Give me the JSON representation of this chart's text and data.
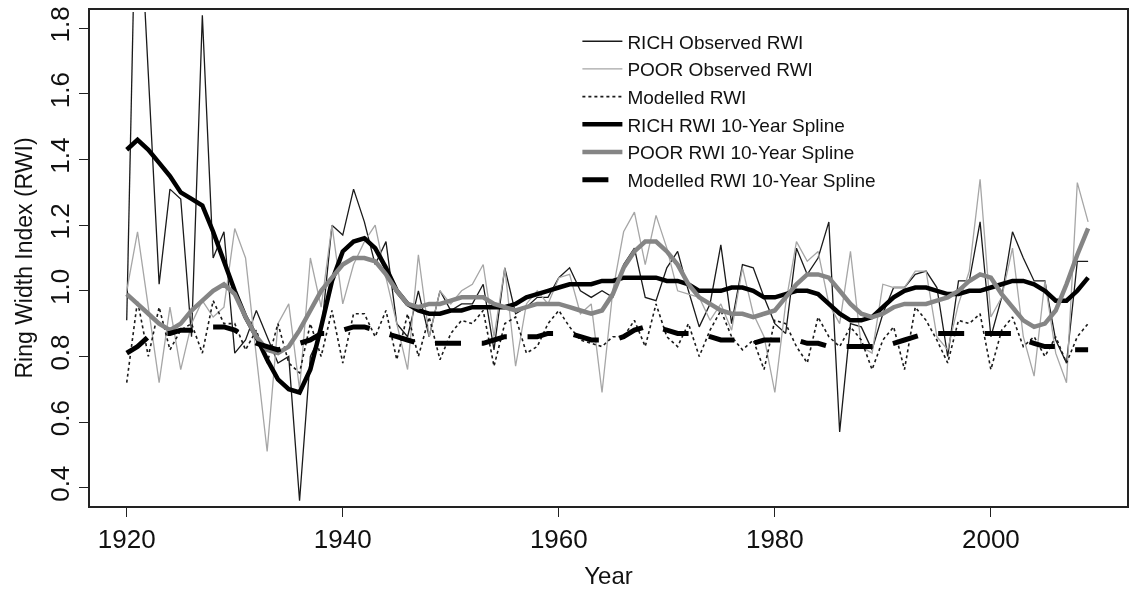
{
  "chart_data": {
    "type": "line",
    "xlabel": "Year",
    "ylabel": "Ring Width Index (RWI)",
    "x": [
      1920,
      1921,
      1922,
      1923,
      1924,
      1925,
      1926,
      1927,
      1928,
      1929,
      1930,
      1931,
      1932,
      1933,
      1934,
      1935,
      1936,
      1937,
      1938,
      1939,
      1940,
      1941,
      1942,
      1943,
      1944,
      1945,
      1946,
      1947,
      1948,
      1949,
      1950,
      1951,
      1952,
      1953,
      1954,
      1955,
      1956,
      1957,
      1958,
      1959,
      1960,
      1961,
      1962,
      1963,
      1964,
      1965,
      1966,
      1967,
      1968,
      1969,
      1970,
      1971,
      1972,
      1973,
      1974,
      1975,
      1976,
      1977,
      1978,
      1979,
      1980,
      1981,
      1982,
      1983,
      1984,
      1985,
      1986,
      1987,
      1988,
      1989,
      1990,
      1991,
      1992,
      1993,
      1994,
      1995,
      1996,
      1997,
      1998,
      1999,
      2000,
      2001,
      2002,
      2003,
      2004,
      2005,
      2006,
      2007,
      2008,
      2009
    ],
    "xlim": [
      1916.6,
      2012.6
    ],
    "xticks": [
      1920,
      1940,
      1960,
      1980,
      2000
    ],
    "ylim": [
      0.344,
      1.856
    ],
    "yticks": [
      0.4,
      0.6,
      0.8,
      {
        "value": 1,
        "label": "1.0"
      },
      1.2,
      1.4,
      1.6,
      1.8
    ],
    "grid": false,
    "legend": "top",
    "marker": "none",
    "series": [
      {
        "name": "RICH Observed RWI",
        "color": "#1a1a1a",
        "line_style": "solid",
        "x": [
          1920,
          1920.6,
          1921,
          1921.7,
          1922,
          1923,
          1924,
          1925,
          1926,
          1927,
          1928,
          1929,
          1930,
          1931,
          1932,
          1933,
          1934,
          1935,
          1936,
          1937,
          1938,
          1939,
          1940,
          1941,
          1942,
          1943,
          1944,
          1945,
          1946,
          1947,
          1948,
          1949,
          1950,
          1951,
          1952,
          1953,
          1954,
          1955,
          1956,
          1957,
          1958,
          1959,
          1960,
          1961,
          1962,
          1963,
          1964,
          1965,
          1966,
          1967,
          1968,
          1969,
          1970,
          1971,
          1972,
          1973,
          1974,
          1975,
          1976,
          1977,
          1978,
          1979,
          1980,
          1981,
          1982,
          1983,
          1984,
          1985,
          1986,
          1987,
          1988,
          1989,
          1990,
          1991,
          1992,
          1993,
          1994,
          1995,
          1996,
          1997,
          1998,
          1999,
          2000,
          2001,
          2002,
          2003,
          2004,
          2005,
          2006,
          2007,
          2008,
          2009
        ],
        "values": [
          0.91,
          1.85,
          null,
          1.85,
          1.66,
          1.02,
          1.31,
          1.28,
          0.86,
          1.84,
          1.1,
          1.18,
          0.81,
          0.85,
          0.94,
          0.86,
          0.78,
          0.8,
          0.36,
          0.8,
          0.87,
          1.2,
          1.17,
          1.31,
          1.21,
          1.08,
          1.15,
          0.9,
          0.86,
          1.0,
          0.86,
          1.0,
          0.94,
          0.96,
          0.96,
          1.02,
          0.82,
          1.07,
          0.93,
          0.95,
          0.98,
          0.98,
          1.04,
          1.07,
          1.0,
          0.98,
          1.0,
          0.98,
          1.08,
          1.13,
          0.98,
          0.97,
          1.07,
          1.12,
          1.0,
          0.89,
          0.96,
          1.14,
          0.9,
          1.08,
          1.07,
          0.98,
          0.9,
          0.87,
          1.13,
          1.05,
          1.1,
          1.21,
          0.57,
          0.9,
          0.89,
          0.82,
          0.93,
          1.01,
          1.01,
          1.05,
          1.06,
          1.01,
          0.8,
          1.03,
          1.03,
          1.21,
          0.86,
          0.98,
          1.18,
          1.1,
          1.03,
          1.03,
          0.85,
          0.78,
          1.09,
          1.09
        ]
      },
      {
        "name": "POOR Observed RWI",
        "color": "#a6a6a6",
        "line_style": "solid",
        "values": [
          1.0,
          1.18,
          0.95,
          0.72,
          0.95,
          0.76,
          0.9,
          0.97,
          0.92,
          0.95,
          1.19,
          1.1,
          0.8,
          0.51,
          0.9,
          0.96,
          0.7,
          1.1,
          0.95,
          1.2,
          0.96,
          1.08,
          1.15,
          1.2,
          1.04,
          0.9,
          0.76,
          1.11,
          0.86,
          1.0,
          0.96,
          1.0,
          1.02,
          1.08,
          0.86,
          1.07,
          0.77,
          0.96,
          1.0,
          0.96,
          1.04,
          1.05,
          0.93,
          0.96,
          0.69,
          1.0,
          1.18,
          1.24,
          1.08,
          1.23,
          1.13,
          1.0,
          0.99,
          0.98,
          0.91,
          0.96,
          0.88,
          1.07,
          0.93,
          0.86,
          0.69,
          0.96,
          1.15,
          1.09,
          1.12,
          0.96,
          0.9,
          1.12,
          0.83,
          0.81,
          1.02,
          1.01,
          1.01,
          1.06,
          1.06,
          0.86,
          0.82,
          0.96,
          1.06,
          1.34,
          0.92,
          0.98,
          1.13,
          0.86,
          0.74,
          1.03,
          0.81,
          0.72,
          1.33,
          1.21
        ]
      },
      {
        "name": "Modelled RWI",
        "color": "#1a1a1a",
        "line_style": "dotted",
        "values": [
          0.72,
          0.97,
          0.8,
          0.95,
          0.82,
          0.88,
          0.9,
          0.81,
          0.97,
          0.9,
          0.9,
          0.82,
          0.88,
          0.78,
          0.9,
          0.78,
          0.75,
          0.9,
          0.8,
          0.94,
          0.78,
          0.93,
          0.93,
          0.86,
          0.94,
          0.79,
          0.93,
          0.8,
          0.92,
          0.79,
          0.87,
          0.91,
          0.9,
          0.94,
          0.77,
          0.9,
          0.92,
          0.81,
          0.83,
          0.9,
          0.94,
          0.89,
          0.85,
          0.84,
          0.83,
          0.86,
          0.86,
          0.91,
          0.83,
          0.96,
          0.86,
          0.83,
          0.9,
          0.8,
          0.88,
          0.94,
          0.86,
          0.82,
          0.85,
          0.76,
          0.91,
          0.9,
          0.83,
          0.78,
          0.92,
          0.86,
          0.83,
          0.89,
          0.85,
          0.76,
          0.85,
          0.89,
          0.76,
          0.95,
          0.91,
          0.85,
          0.78,
          0.91,
          0.9,
          0.93,
          0.76,
          0.88,
          0.92,
          0.83,
          0.86,
          0.8,
          0.86,
          0.78,
          0.86,
          0.9
        ]
      },
      {
        "name": "RICH RWI 10-Year Spline",
        "color": "#000000",
        "line_style": "solid",
        "values": [
          1.43,
          1.46,
          1.43,
          1.39,
          1.35,
          1.3,
          1.28,
          1.26,
          1.18,
          1.09,
          1.0,
          0.92,
          0.86,
          0.79,
          0.73,
          0.7,
          0.69,
          0.76,
          0.89,
          1.03,
          1.12,
          1.15,
          1.16,
          1.13,
          1.07,
          1.0,
          0.96,
          0.94,
          0.93,
          0.93,
          0.94,
          0.94,
          0.95,
          0.95,
          0.95,
          0.95,
          0.96,
          0.98,
          0.99,
          1.0,
          1.01,
          1.02,
          1.02,
          1.02,
          1.03,
          1.03,
          1.04,
          1.04,
          1.04,
          1.04,
          1.03,
          1.03,
          1.02,
          1.0,
          1.0,
          1.0,
          1.01,
          1.01,
          1.0,
          0.98,
          0.98,
          0.99,
          1.0,
          1.0,
          0.99,
          0.96,
          0.93,
          0.91,
          0.91,
          0.92,
          0.95,
          0.98,
          1.0,
          1.01,
          1.01,
          1.0,
          0.99,
          0.99,
          1.0,
          1.0,
          1.01,
          1.02,
          1.03,
          1.03,
          1.02,
          1.0,
          0.97,
          0.97,
          1.0,
          1.04
        ]
      },
      {
        "name": "POOR RWI 10-Year Spline",
        "color": "#858585",
        "line_style": "solid",
        "values": [
          0.99,
          0.96,
          0.93,
          0.9,
          0.88,
          0.9,
          0.94,
          0.97,
          1.0,
          1.02,
          0.99,
          0.92,
          0.86,
          0.82,
          0.81,
          0.83,
          0.88,
          0.94,
          1.0,
          1.04,
          1.08,
          1.1,
          1.1,
          1.09,
          1.05,
          1.0,
          0.96,
          0.95,
          0.96,
          0.96,
          0.97,
          0.98,
          0.98,
          0.98,
          0.96,
          0.95,
          0.94,
          0.95,
          0.96,
          0.96,
          0.96,
          0.95,
          0.94,
          0.93,
          0.94,
          0.99,
          1.07,
          1.12,
          1.15,
          1.15,
          1.12,
          1.08,
          1.02,
          0.98,
          0.96,
          0.94,
          0.93,
          0.93,
          0.92,
          0.93,
          0.94,
          0.98,
          1.02,
          1.05,
          1.05,
          1.04,
          1.0,
          0.96,
          0.93,
          0.92,
          0.93,
          0.95,
          0.96,
          0.96,
          0.96,
          0.97,
          0.98,
          1.0,
          1.03,
          1.05,
          1.04,
          0.99,
          0.95,
          0.91,
          0.89,
          0.9,
          0.94,
          1.02,
          1.11,
          1.19
        ]
      },
      {
        "name": "Modelled RWI 10-Year Spline",
        "color": "#000000",
        "line_style": "dashed",
        "values": [
          0.81,
          0.83,
          0.86,
          0.87,
          0.87,
          0.88,
          0.88,
          0.89,
          0.89,
          0.89,
          0.88,
          0.86,
          0.84,
          0.83,
          0.82,
          0.83,
          0.84,
          0.85,
          0.87,
          0.87,
          0.88,
          0.89,
          0.89,
          0.88,
          0.87,
          0.86,
          0.85,
          0.84,
          0.84,
          0.84,
          0.84,
          0.84,
          0.84,
          0.84,
          0.85,
          0.86,
          0.86,
          0.86,
          0.86,
          0.87,
          0.87,
          0.87,
          0.86,
          0.85,
          0.85,
          0.85,
          0.86,
          0.88,
          0.89,
          0.89,
          0.88,
          0.87,
          0.87,
          0.87,
          0.86,
          0.85,
          0.85,
          0.85,
          0.84,
          0.85,
          0.85,
          0.85,
          0.85,
          0.84,
          0.84,
          0.83,
          0.83,
          0.83,
          0.83,
          0.83,
          0.83,
          0.84,
          0.85,
          0.86,
          0.87,
          0.87,
          0.87,
          0.87,
          0.87,
          0.87,
          0.87,
          0.87,
          0.87,
          0.85,
          0.84,
          0.83,
          0.83,
          0.82,
          0.82,
          0.82
        ]
      }
    ]
  }
}
